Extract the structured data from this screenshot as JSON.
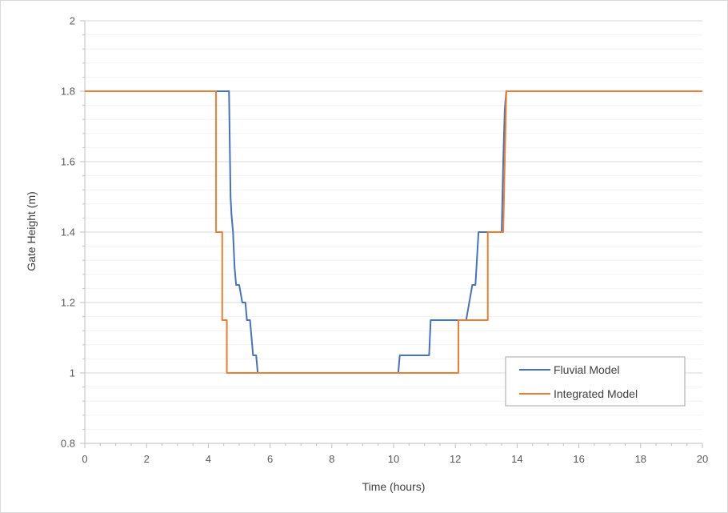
{
  "chart_data": {
    "type": "line",
    "title": "",
    "xlabel": "Time (hours)",
    "ylabel": "Gate Height (m)",
    "xlim": [
      0,
      20
    ],
    "ylim": [
      0.8,
      2
    ],
    "xticks": [
      0,
      2,
      4,
      6,
      8,
      10,
      12,
      14,
      16,
      18,
      20
    ],
    "xtick_labels": [
      "0",
      "2",
      "4",
      "6",
      "8",
      "10",
      "12",
      "14",
      "16",
      "18",
      "20"
    ],
    "yticks": [
      0.8,
      1,
      1.2,
      1.4,
      1.6,
      1.8,
      2
    ],
    "ytick_labels": [
      "0.8",
      "1",
      "1.2",
      "1.4",
      "1.6",
      "1.8",
      "2"
    ],
    "grid": true,
    "legend_position": "bottom-right",
    "series": [
      {
        "name": "Fluvial Model",
        "color": "#4472C4",
        "x": [
          1.0,
          4.6,
          4.67,
          4.72,
          4.75,
          4.8,
          4.85,
          4.9,
          4.95,
          5.0,
          5.1,
          5.15,
          5.2,
          5.25,
          5.3,
          5.35,
          5.4,
          5.45,
          5.5,
          5.55,
          5.6,
          10.15,
          10.2,
          10.25,
          11.15,
          11.2,
          11.25,
          12.35,
          12.45,
          12.55,
          12.65,
          12.75,
          13.5,
          13.55,
          13.6,
          13.65,
          20.0
        ],
        "y": [
          1.8,
          1.8,
          1.8,
          1.5,
          1.45,
          1.4,
          1.3,
          1.25,
          1.25,
          1.25,
          1.2,
          1.2,
          1.2,
          1.15,
          1.15,
          1.15,
          1.1,
          1.05,
          1.05,
          1.05,
          1.0,
          1.0,
          1.05,
          1.05,
          1.05,
          1.15,
          1.15,
          1.15,
          1.2,
          1.25,
          1.25,
          1.4,
          1.4,
          1.6,
          1.75,
          1.8,
          1.8
        ]
      },
      {
        "name": "Integrated Model",
        "color": "#ED7D31",
        "x": [
          0,
          4.25,
          4.25,
          4.45,
          4.45,
          4.6,
          4.6,
          12.1,
          12.1,
          13.05,
          13.05,
          13.55,
          13.55,
          13.65,
          13.7,
          20.0
        ],
        "y": [
          1.8,
          1.8,
          1.4,
          1.4,
          1.15,
          1.15,
          1.0,
          1.0,
          1.15,
          1.15,
          1.4,
          1.4,
          1.4,
          1.8,
          1.8,
          1.8
        ]
      }
    ]
  }
}
